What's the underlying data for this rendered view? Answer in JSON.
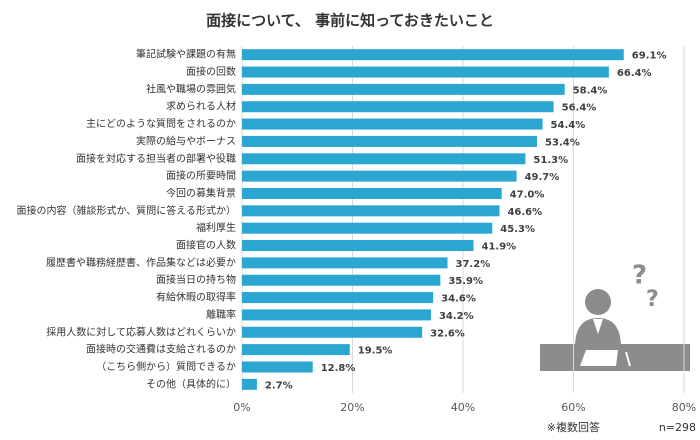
{
  "chart_data": {
    "type": "barh",
    "title": "面接について、 事前に知っておきたいこと",
    "categories": [
      "筆記試験や課題の有無",
      "面接の回数",
      "社風や職場の雰囲気",
      "求められる人材",
      "主にどのような質問をされるのか",
      "実際の給与やボーナス",
      "面接を対応する担当者の部署や役職",
      "面接の所要時間",
      "今回の募集背景",
      "面接の内容（雑談形式か、質問に答える形式か）",
      "福利厚生",
      "面接官の人数",
      "履歴書や職務経歴書、作品集などは必要か",
      "面接当日の持ち物",
      "有給休暇の取得率",
      "離職率",
      "採用人数に対して応募人数はどれくらいか",
      "面接時の交通費は支給されるのか",
      "（こちら側から）質問できるか",
      "その他（具体的に）"
    ],
    "values": [
      69.1,
      66.4,
      58.4,
      56.4,
      54.4,
      53.4,
      51.3,
      49.7,
      47.0,
      46.6,
      45.3,
      41.9,
      37.2,
      35.9,
      34.6,
      34.2,
      32.6,
      19.5,
      12.8,
      2.7
    ],
    "value_labels": [
      "69.1%",
      "66.4%",
      "58.4%",
      "56.4%",
      "54.4%",
      "53.4%",
      "51.3%",
      "49.7%",
      "47.0%",
      "46.6%",
      "45.3%",
      "41.9%",
      "37.2%",
      "35.9%",
      "34.6%",
      "34.2%",
      "32.6%",
      "19.5%",
      "12.8%",
      "2.7%"
    ],
    "color": "#2aa6d0",
    "xlim": [
      0,
      80
    ],
    "xticks": [
      {
        "value": 0,
        "label": "0%"
      },
      {
        "value": 20,
        "label": "20%"
      },
      {
        "value": 40,
        "label": "40%"
      },
      {
        "value": 60,
        "label": "60%"
      },
      {
        "value": 80,
        "label": "80%"
      }
    ],
    "grid": true,
    "annotations": [
      "※複数回答",
      "n=298"
    ]
  }
}
